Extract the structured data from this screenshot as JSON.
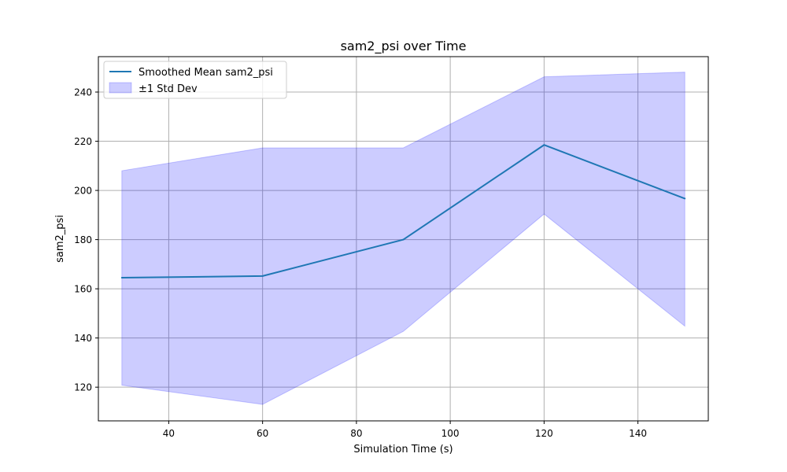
{
  "chart_data": {
    "type": "line",
    "title": "sam2_psi over Time",
    "xlabel": "Simulation Time (s)",
    "ylabel": "sam2_psi",
    "xlim": [
      25,
      155
    ],
    "ylim": [
      106.3,
      254.4
    ],
    "xticks": [
      40,
      60,
      80,
      100,
      120,
      140
    ],
    "yticks": [
      120,
      140,
      160,
      180,
      200,
      220,
      240
    ],
    "grid": true,
    "legend_position": "top-left",
    "x": [
      30,
      60,
      90,
      120,
      150
    ],
    "series": [
      {
        "name": "Smoothed Mean sam2_psi",
        "kind": "line",
        "color": "#1f77b4",
        "values": [
          164.5,
          165.2,
          180.0,
          218.5,
          196.7
        ]
      },
      {
        "name": "±1 Std Dev",
        "kind": "band",
        "color": "#0000ff",
        "lower": [
          120.8,
          113.0,
          142.7,
          190.4,
          144.8
        ],
        "upper": [
          208.0,
          217.3,
          217.3,
          246.2,
          248.1
        ]
      }
    ]
  }
}
